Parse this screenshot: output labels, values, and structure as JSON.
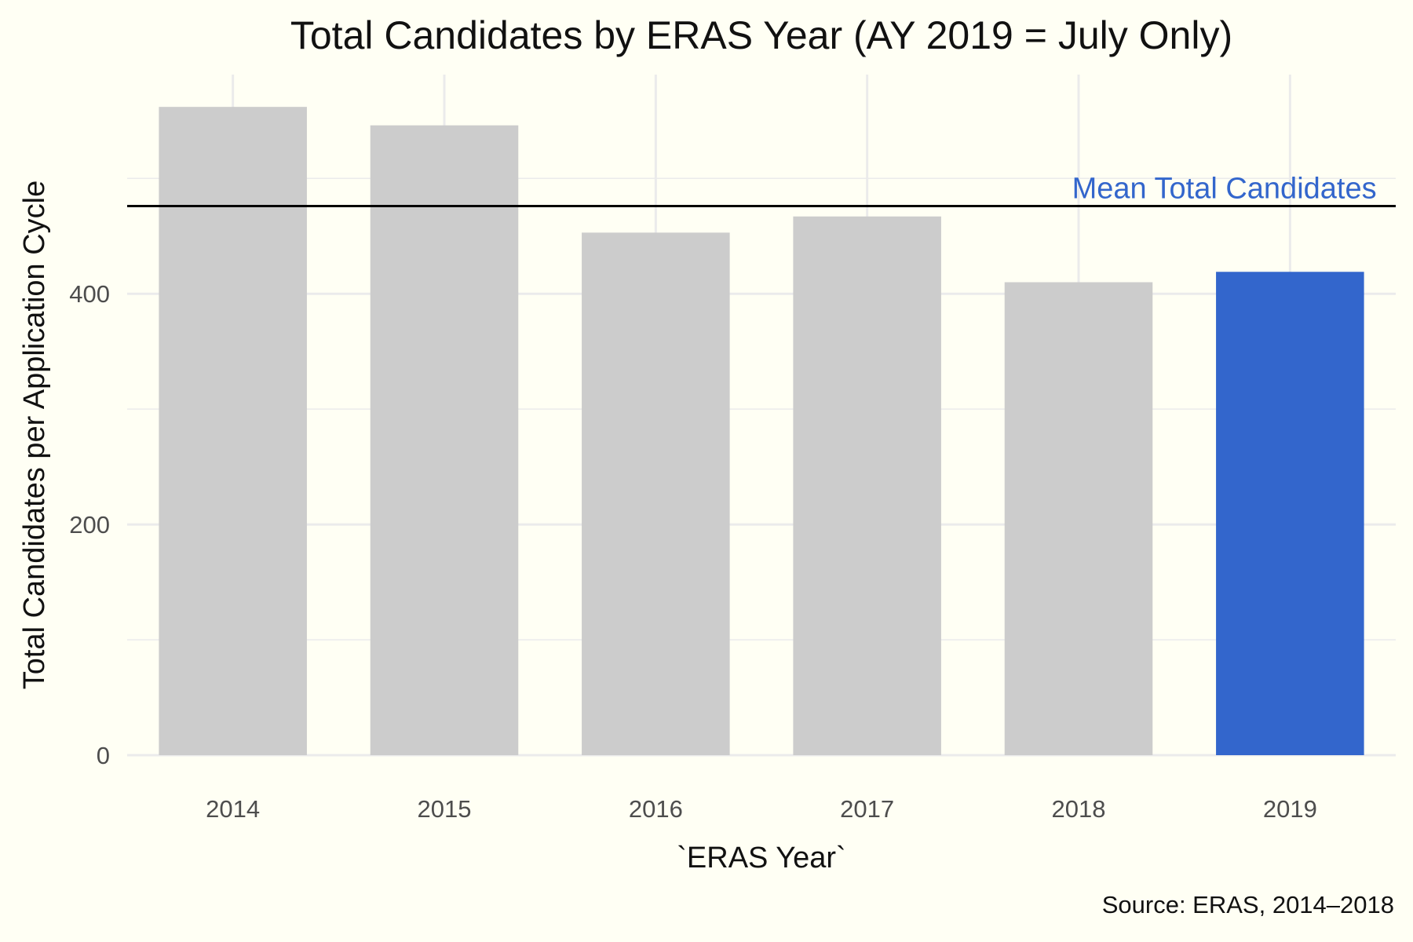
{
  "chart_data": {
    "type": "bar",
    "title": "Total Candidates by ERAS Year (AY 2019 = July Only)",
    "xlabel": "`ERAS Year`",
    "ylabel": "Total Candidates per Application Cycle",
    "caption": "Source: ERAS, 2014–2018",
    "categories": [
      "2014",
      "2015",
      "2016",
      "2017",
      "2018",
      "2019"
    ],
    "values": [
      562,
      546,
      453,
      467,
      410,
      419
    ],
    "ylim": [
      0,
      590
    ],
    "yticks": [
      0,
      200,
      400
    ],
    "grid": true,
    "legend": "none",
    "reference_line": {
      "label": "Mean Total Candidates",
      "value": 476
    },
    "highlight_category": "2019",
    "colors": {
      "bar_default": "#cccccc",
      "bar_highlight": "#3366cc",
      "annotation": "#3366cc",
      "mean_line": "#000000",
      "grid": "#ebebeb",
      "background": "#fffff4"
    }
  }
}
